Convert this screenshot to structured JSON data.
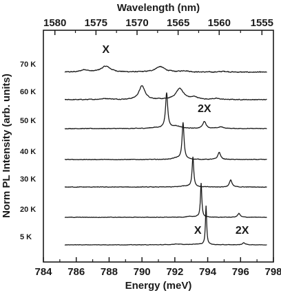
{
  "chart_data": {
    "type": "line",
    "xlabel": "Energy (meV)",
    "x2label": "Wavelength (nm)",
    "ylabel": "Norm PL Intensity (arb. units)",
    "xlim": [
      784,
      798
    ],
    "x_ticks": [
      "784",
      "786",
      "788",
      "790",
      "792",
      "794",
      "796",
      "798"
    ],
    "x2_ticks": [
      "1580",
      "1575",
      "1570",
      "1565",
      "1560",
      "1555"
    ],
    "x2_tick_energies": [
      784.7,
      787.2,
      789.7,
      792.2,
      794.7,
      797.3
    ],
    "grid": false,
    "legend": "none",
    "stacked_offset": true,
    "color": "#1a1a1a",
    "series": [
      {
        "name": "70 K",
        "x_start": 785.3,
        "baseline": 0.0,
        "noise": 0.06,
        "peaks": [
          [
            786.5,
            0.18,
            0.25
          ],
          [
            787.8,
            0.45,
            0.35
          ],
          [
            791.1,
            0.42,
            0.35
          ],
          [
            792.6,
            0.1,
            0.3
          ],
          [
            795.0,
            0.06,
            0.3
          ]
        ]
      },
      {
        "name": "60 K",
        "x_start": 785.3,
        "baseline": 0.0,
        "noise": 0.05,
        "peaks": [
          [
            787.8,
            0.08,
            0.4
          ],
          [
            790.0,
            1.05,
            0.22
          ],
          [
            792.3,
            0.85,
            0.28
          ],
          [
            793.2,
            0.18,
            0.25
          ],
          [
            794.5,
            0.08,
            0.3
          ]
        ]
      },
      {
        "name": "50 K",
        "x_start": 785.3,
        "baseline": 0.0,
        "noise": 0.04,
        "peaks": [
          [
            790.8,
            0.06,
            0.4
          ],
          [
            791.5,
            2.7,
            0.08
          ],
          [
            792.1,
            0.18,
            0.3
          ],
          [
            793.8,
            0.55,
            0.12
          ],
          [
            794.8,
            0.12,
            0.2
          ]
        ]
      },
      {
        "name": "40 K",
        "x_start": 785.3,
        "baseline": 0.0,
        "noise": 0.04,
        "peaks": [
          [
            792.1,
            0.1,
            0.3
          ],
          [
            792.5,
            2.8,
            0.07
          ],
          [
            794.7,
            0.55,
            0.1
          ]
        ]
      },
      {
        "name": "30 K",
        "x_start": 785.3,
        "baseline": 0.0,
        "noise": 0.04,
        "peaks": [
          [
            792.6,
            0.08,
            0.3
          ],
          [
            793.1,
            2.3,
            0.06
          ],
          [
            795.4,
            0.55,
            0.09
          ]
        ]
      },
      {
        "name": "20 K",
        "x_start": 785.3,
        "baseline": 0.0,
        "noise": 0.035,
        "peaks": [
          [
            793.0,
            0.06,
            0.3
          ],
          [
            793.6,
            2.6,
            0.05
          ],
          [
            795.9,
            0.3,
            0.09
          ]
        ]
      },
      {
        "name": "5 K",
        "x_start": 785.3,
        "baseline": 0.0,
        "noise": 0.03,
        "peaks": [
          [
            792.1,
            0.06,
            0.3
          ],
          [
            793.3,
            0.05,
            0.3
          ],
          [
            793.9,
            3.0,
            0.045
          ],
          [
            796.2,
            0.15,
            0.1
          ]
        ]
      }
    ],
    "annotations": [
      {
        "text": "X",
        "x": 787.8,
        "series": "70 K"
      },
      {
        "text": "2X",
        "x": 793.8,
        "series": "50 K"
      },
      {
        "text": "X",
        "x": 793.4,
        "series": "5 K"
      },
      {
        "text": "2X",
        "x": 796.1,
        "series": "5 K"
      }
    ]
  }
}
